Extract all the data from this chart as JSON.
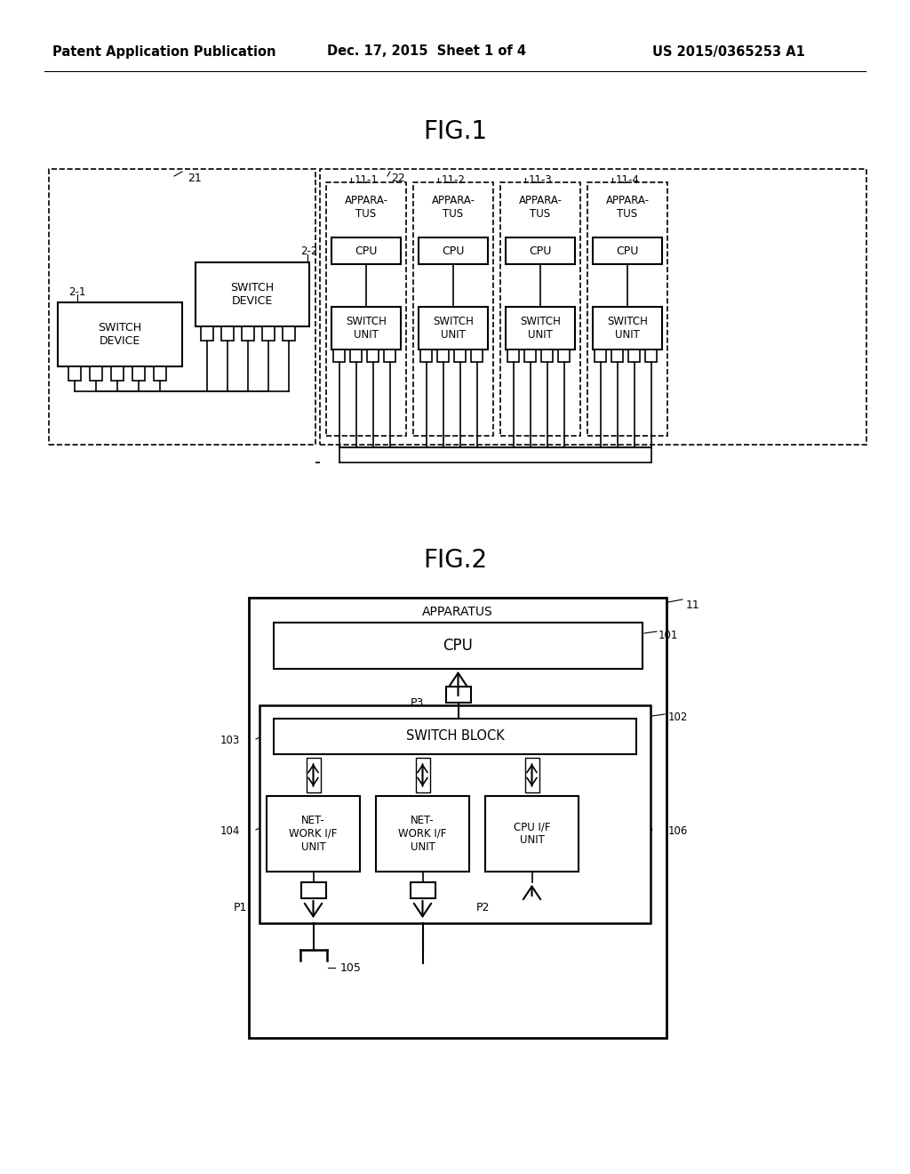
{
  "bg_color": "#ffffff",
  "header_left": "Patent Application Publication",
  "header_mid": "Dec. 17, 2015  Sheet 1 of 4",
  "header_right": "US 2015/0365253 A1"
}
